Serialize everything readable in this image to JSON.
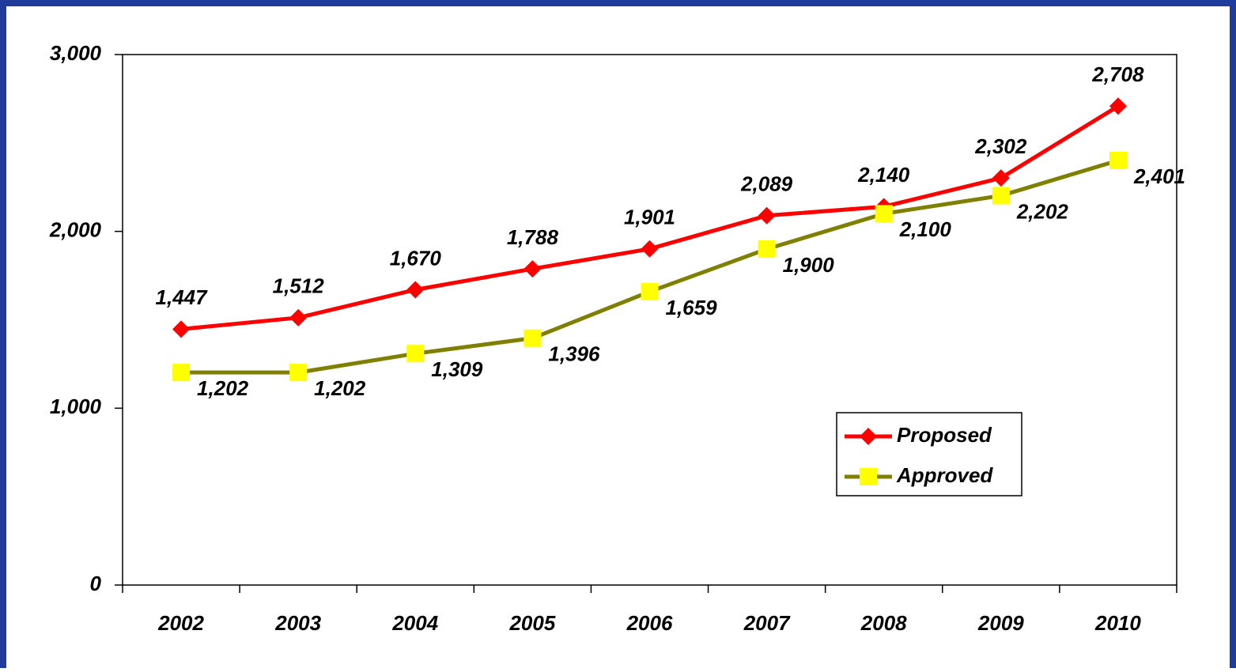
{
  "chart_data": {
    "type": "line",
    "categories": [
      "2002",
      "2003",
      "2004",
      "2005",
      "2006",
      "2007",
      "2008",
      "2009",
      "2010"
    ],
    "series": [
      {
        "name": "Proposed",
        "color": "#ff0000",
        "marker": "diamond",
        "marker_color": "#ff0000",
        "values": [
          1447,
          1512,
          1670,
          1788,
          1901,
          2089,
          2140,
          2302,
          2708
        ],
        "value_labels": [
          "1,447",
          "1,512",
          "1,670",
          "1,788",
          "1,901",
          "2,089",
          "2,140",
          "2,302",
          "2,708"
        ]
      },
      {
        "name": "Approved",
        "color": "#808000",
        "marker": "square",
        "marker_color": "#ffff00",
        "values": [
          1202,
          1202,
          1309,
          1396,
          1659,
          1900,
          2100,
          2202,
          2401
        ],
        "value_labels": [
          "1,202",
          "1,202",
          "1,309",
          "1,396",
          "1,659",
          "1,900",
          "2,100",
          "2,202",
          "2,401"
        ]
      }
    ],
    "ylim": [
      0,
      3000
    ],
    "yticks": [
      0,
      {
        "value": 1000,
        "label": "1,000"
      },
      {
        "value": 2000,
        "label": "2,000"
      },
      {
        "value": 3000,
        "label": "3,000"
      }
    ],
    "grid": false
  }
}
